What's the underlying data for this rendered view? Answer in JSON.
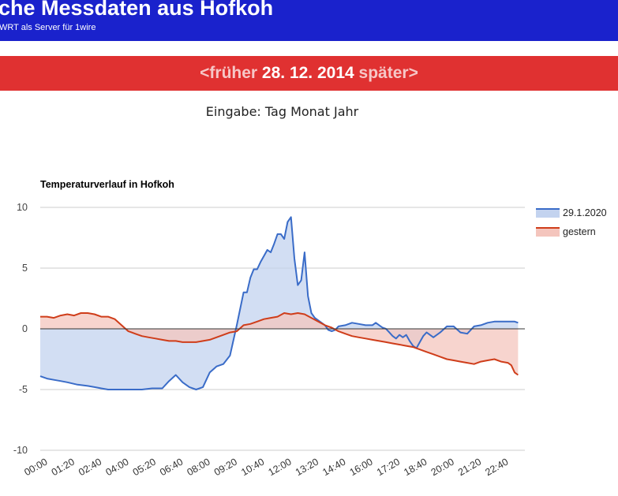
{
  "header": {
    "title": "che Messdaten aus Hofkoh",
    "subtitle": "WRT als Server für 1wire"
  },
  "datebar": {
    "prev_label": "<früher",
    "date": "28. 12. 2014",
    "next_label": "später>"
  },
  "prompt": "Eingabe: Tag Monat Jahr",
  "colors": {
    "header_bg": "#1a22cc",
    "datebar_bg": "#e03131",
    "series_today": "#3a6cc8",
    "series_today_fill": "#c3d3ef",
    "series_yesterday": "#cf3d1a",
    "series_yesterday_fill": "#f4c5bd"
  },
  "chart_data": {
    "type": "area",
    "title": "Temperaturverlauf in Hofkoh",
    "xlabel": "",
    "ylabel": "",
    "ylim": [
      -10,
      10
    ],
    "yticks": [
      10,
      5,
      0,
      -5,
      -10
    ],
    "xlim": [
      0,
      1430
    ],
    "xtick_labels": [
      "00:00",
      "01:20",
      "02:40",
      "04:00",
      "05:20",
      "06:40",
      "08:00",
      "09:20",
      "10:40",
      "12:00",
      "13:20",
      "14:40",
      "16:00",
      "17:20",
      "18:40",
      "20:00",
      "21:20",
      "22:40"
    ],
    "grid": true,
    "legend": "right",
    "series": [
      {
        "name": "29.1.2020",
        "x": [
          0,
          20,
          40,
          60,
          80,
          110,
          140,
          160,
          180,
          200,
          220,
          240,
          260,
          280,
          300,
          330,
          360,
          380,
          400,
          420,
          440,
          460,
          480,
          500,
          520,
          540,
          560,
          580,
          600,
          610,
          620,
          630,
          640,
          650,
          660,
          670,
          680,
          690,
          700,
          710,
          720,
          730,
          740,
          750,
          760,
          770,
          780,
          790,
          800,
          810,
          820,
          830,
          840,
          850,
          860,
          870,
          880,
          900,
          920,
          940,
          960,
          980,
          990,
          1000,
          1010,
          1020,
          1030,
          1040,
          1050,
          1060,
          1070,
          1080,
          1090,
          1100,
          1110,
          1120,
          1130,
          1140,
          1160,
          1180,
          1200,
          1220,
          1240,
          1260,
          1280,
          1300,
          1320,
          1340,
          1360,
          1380,
          1400,
          1410
        ],
        "values": [
          -3.9,
          -4.1,
          -4.2,
          -4.3,
          -4.4,
          -4.6,
          -4.7,
          -4.8,
          -4.9,
          -5.0,
          -5.0,
          -5.0,
          -5.0,
          -5.0,
          -5.0,
          -4.9,
          -4.9,
          -4.3,
          -3.8,
          -4.4,
          -4.8,
          -5.0,
          -4.8,
          -3.6,
          -3.1,
          -2.9,
          -2.2,
          0.3,
          3.0,
          3.0,
          4.2,
          4.9,
          4.9,
          5.5,
          6.0,
          6.5,
          6.3,
          7.0,
          7.8,
          7.8,
          7.4,
          8.8,
          9.2,
          5.8,
          3.6,
          4.0,
          6.3,
          2.7,
          1.3,
          0.9,
          0.7,
          0.5,
          0.3,
          -0.1,
          -0.2,
          -0.1,
          0.2,
          0.3,
          0.5,
          0.4,
          0.3,
          0.3,
          0.5,
          0.3,
          0.1,
          0.0,
          -0.3,
          -0.6,
          -0.8,
          -0.5,
          -0.7,
          -0.5,
          -1.0,
          -1.4,
          -1.6,
          -1.1,
          -0.6,
          -0.3,
          -0.7,
          -0.3,
          0.2,
          0.2,
          -0.3,
          -0.4,
          0.2,
          0.3,
          0.5,
          0.6,
          0.6,
          0.6,
          0.6,
          0.5
        ],
        "color": "#3a6cc8"
      },
      {
        "name": "gestern",
        "x": [
          0,
          20,
          40,
          60,
          80,
          100,
          120,
          140,
          160,
          180,
          200,
          220,
          240,
          260,
          270,
          280,
          290,
          300,
          320,
          340,
          360,
          380,
          400,
          420,
          440,
          460,
          480,
          500,
          520,
          540,
          560,
          580,
          600,
          620,
          640,
          660,
          680,
          700,
          720,
          740,
          760,
          780,
          800,
          820,
          840,
          860,
          880,
          900,
          920,
          940,
          960,
          980,
          1000,
          1020,
          1040,
          1060,
          1080,
          1100,
          1120,
          1140,
          1160,
          1180,
          1200,
          1220,
          1240,
          1260,
          1280,
          1300,
          1320,
          1340,
          1360,
          1380,
          1390,
          1400,
          1410
        ],
        "values": [
          1.0,
          1.0,
          0.9,
          1.1,
          1.2,
          1.1,
          1.3,
          1.3,
          1.2,
          1.0,
          1.0,
          0.8,
          0.3,
          -0.2,
          -0.3,
          -0.4,
          -0.5,
          -0.6,
          -0.7,
          -0.8,
          -0.9,
          -1.0,
          -1.0,
          -1.1,
          -1.1,
          -1.1,
          -1.0,
          -0.9,
          -0.7,
          -0.5,
          -0.3,
          -0.2,
          0.3,
          0.4,
          0.6,
          0.8,
          0.9,
          1.0,
          1.3,
          1.2,
          1.3,
          1.2,
          0.9,
          0.6,
          0.3,
          0.1,
          -0.2,
          -0.4,
          -0.6,
          -0.7,
          -0.8,
          -0.9,
          -1.0,
          -1.1,
          -1.2,
          -1.3,
          -1.4,
          -1.5,
          -1.7,
          -1.9,
          -2.1,
          -2.3,
          -2.5,
          -2.6,
          -2.7,
          -2.8,
          -2.9,
          -2.7,
          -2.6,
          -2.5,
          -2.7,
          -2.8,
          -3.0,
          -3.6,
          -3.8
        ],
        "color": "#cf3d1a"
      }
    ]
  }
}
